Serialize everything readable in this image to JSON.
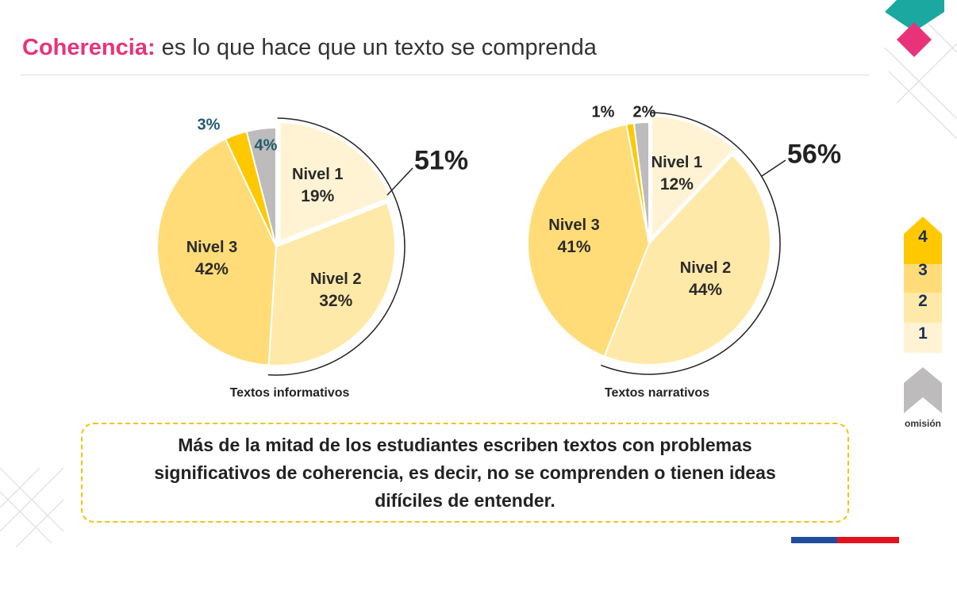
{
  "title": {
    "keyword": "Coherencia:",
    "rest": " es lo que hace que un texto se comprenda"
  },
  "colors": {
    "nivel1": "#FFF3D4",
    "nivel2": "#FFE9A8",
    "nivel3": "#FFDC78",
    "nivel4": "#FFC800",
    "omision": "#BDBBBB",
    "accent": "#E8337A"
  },
  "chart_data": [
    {
      "type": "pie",
      "title": "Textos informativos",
      "categories": [
        "Nivel 1",
        "Nivel 2",
        "Nivel 3",
        "Nivel 4",
        "Omisión"
      ],
      "values": [
        19,
        32,
        42,
        3,
        4
      ],
      "labels": [
        "19%",
        "32%",
        "42%",
        "3%",
        "4%"
      ],
      "bracket_total": "51%",
      "bracket_covers": [
        "Nivel 1",
        "Nivel 2"
      ]
    },
    {
      "type": "pie",
      "title": "Textos narrativos",
      "categories": [
        "Nivel 1",
        "Nivel 2",
        "Nivel 3",
        "Nivel 4",
        "Omisión"
      ],
      "values": [
        12,
        44,
        41,
        1,
        2
      ],
      "labels": [
        "12%",
        "44%",
        "41%",
        "1%",
        "2%"
      ],
      "bracket_total": "56%",
      "bracket_covers": [
        "Nivel 1",
        "Nivel 2"
      ]
    }
  ],
  "legend": {
    "levels": [
      "4",
      "3",
      "2",
      "1"
    ],
    "omission": "omisión"
  },
  "callout": "Más de la mitad de los estudiantes escriben textos con problemas significativos de coherencia, es decir, no se comprenden o tienen ideas difíciles de entender."
}
